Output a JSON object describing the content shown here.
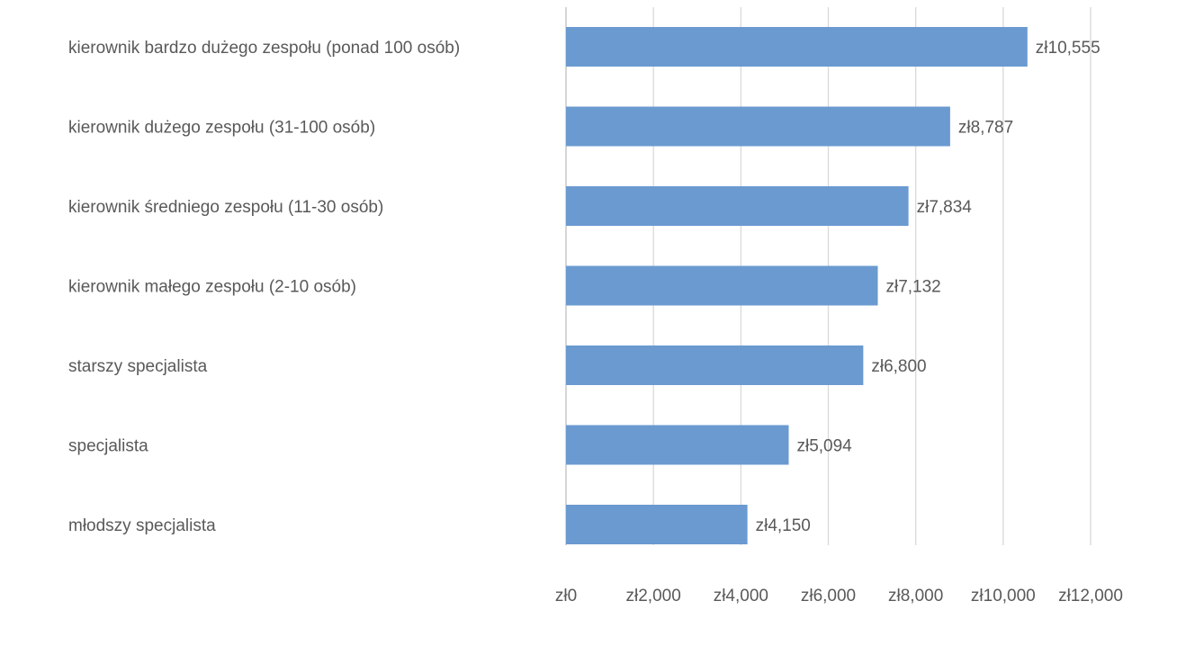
{
  "chart_data": {
    "type": "bar",
    "orientation": "horizontal",
    "categories": [
      "kierownik bardzo dużego zespołu (ponad 100 osób)",
      "kierownik dużego zespołu (31-100 osób)",
      "kierownik średniego zespołu (11-30 osób)",
      "kierownik małego zespołu (2-10 osób)",
      "starszy specjalista",
      "specjalista",
      "młodszy specjalista"
    ],
    "values": [
      10555,
      8787,
      7834,
      7132,
      6800,
      5094,
      4150
    ],
    "value_labels": [
      "zł10,555",
      "zł8,787",
      "zł7,834",
      "zł7,132",
      "zł6,800",
      "zł5,094",
      "zł4,150"
    ],
    "x_ticks": [
      0,
      2000,
      4000,
      6000,
      8000,
      10000,
      12000
    ],
    "x_tick_labels": [
      "zł0",
      "zł2,000",
      "zł4,000",
      "zł6,000",
      "zł8,000",
      "zł10,000",
      "zł12,000"
    ],
    "xlim": [
      0,
      12000
    ],
    "title": "",
    "xlabel": "",
    "ylabel": "",
    "grid": true,
    "legend": "none",
    "bar_color": "#6a9ad0",
    "gridline_color": "#d9d9d9",
    "text_color": "#595959"
  }
}
